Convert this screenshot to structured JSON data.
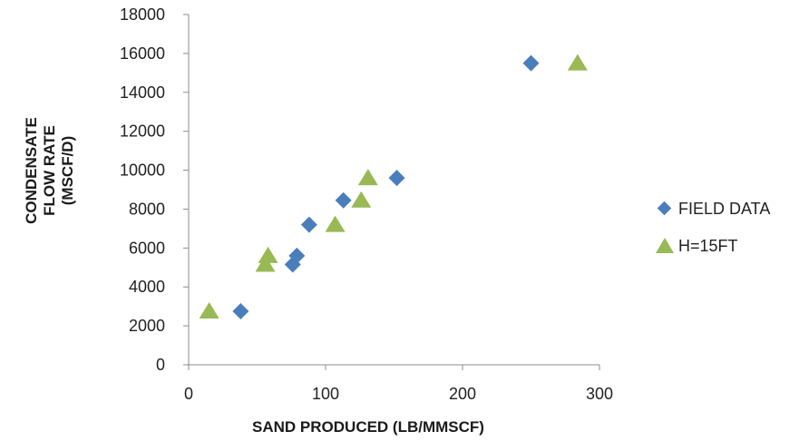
{
  "chart_data": {
    "type": "scatter",
    "title": "",
    "xlabel": "SAND PRODUCED (LB/MMSCF)",
    "ylabel_lines": [
      "CONDENSATE",
      "FLOW RATE",
      "(MSCF/D)"
    ],
    "xlim": [
      0,
      300
    ],
    "ylim": [
      0,
      18000
    ],
    "x_ticks": [
      0,
      100,
      200,
      300
    ],
    "y_ticks": [
      0,
      2000,
      4000,
      6000,
      8000,
      10000,
      12000,
      14000,
      16000,
      18000
    ],
    "grid": false,
    "legend_position": "right",
    "series": [
      {
        "name": "FIELD DATA",
        "marker": "diamond",
        "color": "#4a7ebb",
        "points": [
          [
            38,
            2750
          ],
          [
            76,
            5150
          ],
          [
            79,
            5600
          ],
          [
            88,
            7200
          ],
          [
            113,
            8450
          ],
          [
            152,
            9600
          ],
          [
            250,
            15500
          ]
        ]
      },
      {
        "name": "H=15FT",
        "marker": "triangle",
        "color": "#98b954",
        "points": [
          [
            15,
            2750
          ],
          [
            56,
            5150
          ],
          [
            58,
            5600
          ],
          [
            107,
            7200
          ],
          [
            126,
            8450
          ],
          [
            131,
            9600
          ],
          [
            284,
            15500
          ]
        ]
      }
    ]
  }
}
